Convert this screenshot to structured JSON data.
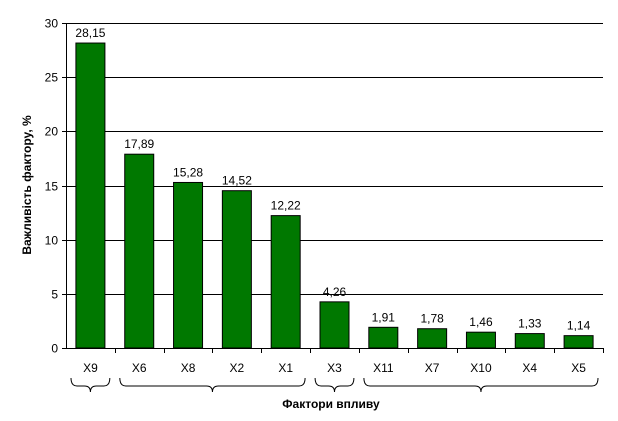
{
  "chart_data": {
    "type": "bar",
    "categories": [
      "X9",
      "X6",
      "X8",
      "X2",
      "X1",
      "X3",
      "X11",
      "X7",
      "X10",
      "X4",
      "X5"
    ],
    "values": [
      28.15,
      17.89,
      15.28,
      14.52,
      12.22,
      4.26,
      1.91,
      1.78,
      1.46,
      1.33,
      1.14
    ],
    "data_labels": [
      "28,15",
      "17,89",
      "15,28",
      "14,52",
      "12,22",
      "4,26",
      "1,91",
      "1,78",
      "1,46",
      "1,33",
      "1,14"
    ],
    "xlabel": "Фактори впливу",
    "ylabel": "Важливість фактору, %",
    "ylim": [
      0,
      30
    ],
    "yticks": [
      "0",
      "5",
      "10",
      "15",
      "20",
      "25",
      "30"
    ],
    "grid": true,
    "legend": "none",
    "groups": [
      {
        "start": 0,
        "end": 0
      },
      {
        "start": 1,
        "end": 4
      },
      {
        "start": 5,
        "end": 5
      },
      {
        "start": 6,
        "end": 10
      }
    ],
    "bar_color": "#007800"
  }
}
